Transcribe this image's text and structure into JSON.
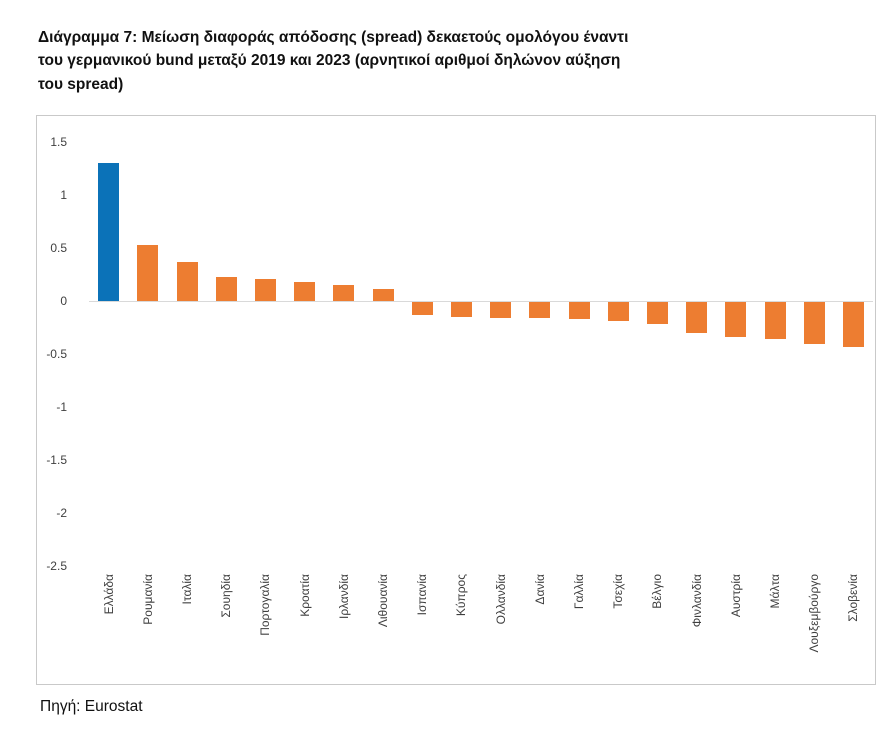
{
  "title": {
    "lines": [
      "Διάγραμμα 7: Μείωση διαφοράς απόδοσης (spread) δεκαετούς ομολόγου έναντι",
      "του γερμανικού bund μεταξύ 2019 και 2023 (αρνητικοί αριθμοί δηλώνον αύξηση",
      "του spread)"
    ]
  },
  "source": "Πηγή: Eurostat",
  "colors": {
    "highlight": "#0b72b8",
    "bar": "#ED7D31",
    "frame_border": "#c9c9c9",
    "zero_line": "#d9d9d9",
    "axis_text": "#3f3f3f"
  },
  "chart_data": {
    "type": "bar",
    "title": "Διάγραμμα 7: Μείωση διαφοράς απόδοσης (spread) δεκαετούς ομολόγου έναντι του γερμανικού bund μεταξύ 2019 και 2023 (αρνητικοί αριθμοί δηλώνον αύξηση του spread)",
    "xlabel": "",
    "ylabel": "",
    "categories": [
      "Ελλάδα",
      "Ρουμανία",
      "Ιταλία",
      "Σουηδία",
      "Πορτογαλία",
      "Κροατία",
      "Ιρλανδία",
      "Λιθουανία",
      "Ισπανία",
      "Κύπρος",
      "Ολλανδία",
      "Δανία",
      "Γαλλία",
      "Τσεχία",
      "Βέλγιο",
      "Φινλανδία",
      "Αυστρία",
      "Μάλτα",
      "Λουξεμβούργο",
      "Σλοβενία"
    ],
    "values": [
      1.3,
      0.53,
      0.37,
      0.23,
      0.21,
      0.18,
      0.15,
      0.11,
      -0.12,
      -0.14,
      -0.15,
      -0.15,
      -0.16,
      -0.18,
      -0.21,
      -0.29,
      -0.33,
      -0.35,
      -0.4,
      -0.42
    ],
    "highlight_index": 0,
    "ylim": [
      -2.5,
      1.5
    ],
    "yticks": [
      1.5,
      1,
      0.5,
      0,
      -0.5,
      -1,
      -1.5,
      -2,
      -2.5
    ],
    "grid": false,
    "legend": null
  }
}
